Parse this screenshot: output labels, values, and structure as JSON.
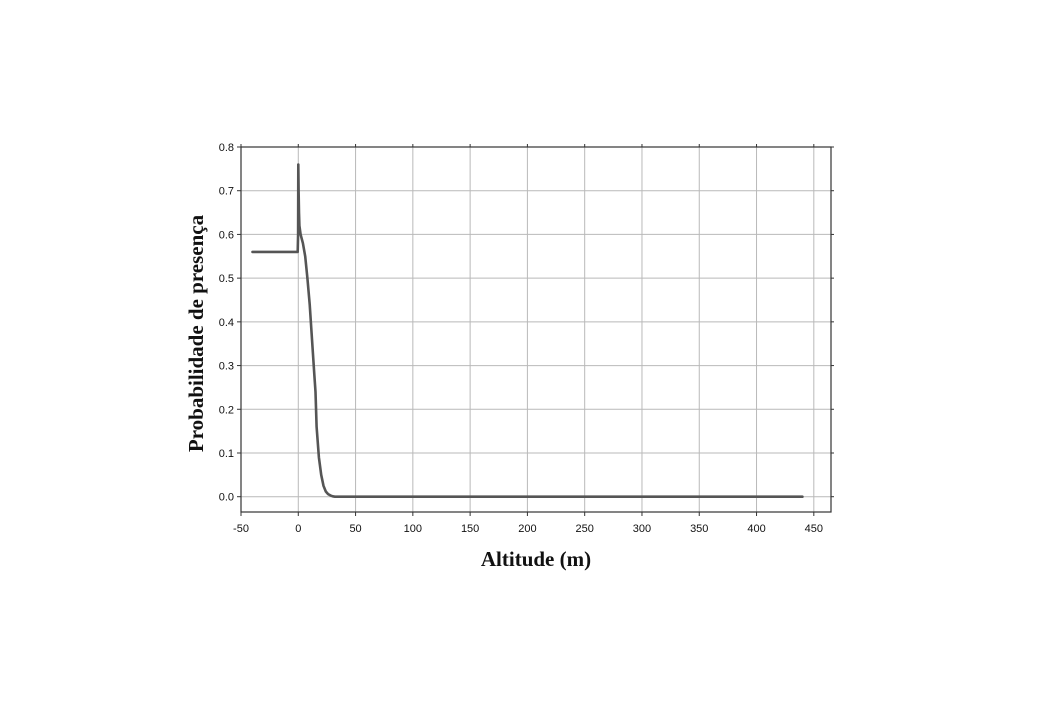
{
  "chart_data": {
    "type": "line",
    "xlabel": "Altitude (m)",
    "ylabel": "Probabilidade de presença",
    "xlim": [
      -50,
      465
    ],
    "ylim": [
      -0.035,
      0.8
    ],
    "x_ticks": [
      -50,
      0,
      50,
      100,
      150,
      200,
      250,
      300,
      350,
      400,
      450
    ],
    "y_ticks": [
      0.8,
      0.7,
      0.6,
      0.5,
      0.4,
      0.3,
      0.2,
      0.1,
      0.0
    ],
    "y_tick_labels": [
      "0.8",
      "0.7",
      "0.6",
      "0.5",
      "0.4",
      "0.3",
      "0.2",
      "0.1",
      "0.0"
    ],
    "grid": true,
    "series": [
      {
        "color": "#555555",
        "x": [
          -40,
          -0.5,
          -0.2,
          0,
          0.3,
          0.6,
          1,
          2,
          4,
          6,
          8,
          10,
          12,
          14,
          15,
          16,
          18,
          20,
          22,
          24,
          26,
          28,
          30,
          32,
          35,
          40,
          60,
          100,
          200,
          300,
          440
        ],
        "y": [
          0.56,
          0.56,
          0.6,
          0.76,
          0.7,
          0.65,
          0.62,
          0.6,
          0.58,
          0.55,
          0.5,
          0.44,
          0.36,
          0.28,
          0.24,
          0.16,
          0.09,
          0.05,
          0.025,
          0.012,
          0.006,
          0.003,
          0.001,
          0.0,
          0.0,
          0.0,
          0.0,
          0.0,
          0.0,
          0.0,
          0.0
        ]
      }
    ]
  }
}
